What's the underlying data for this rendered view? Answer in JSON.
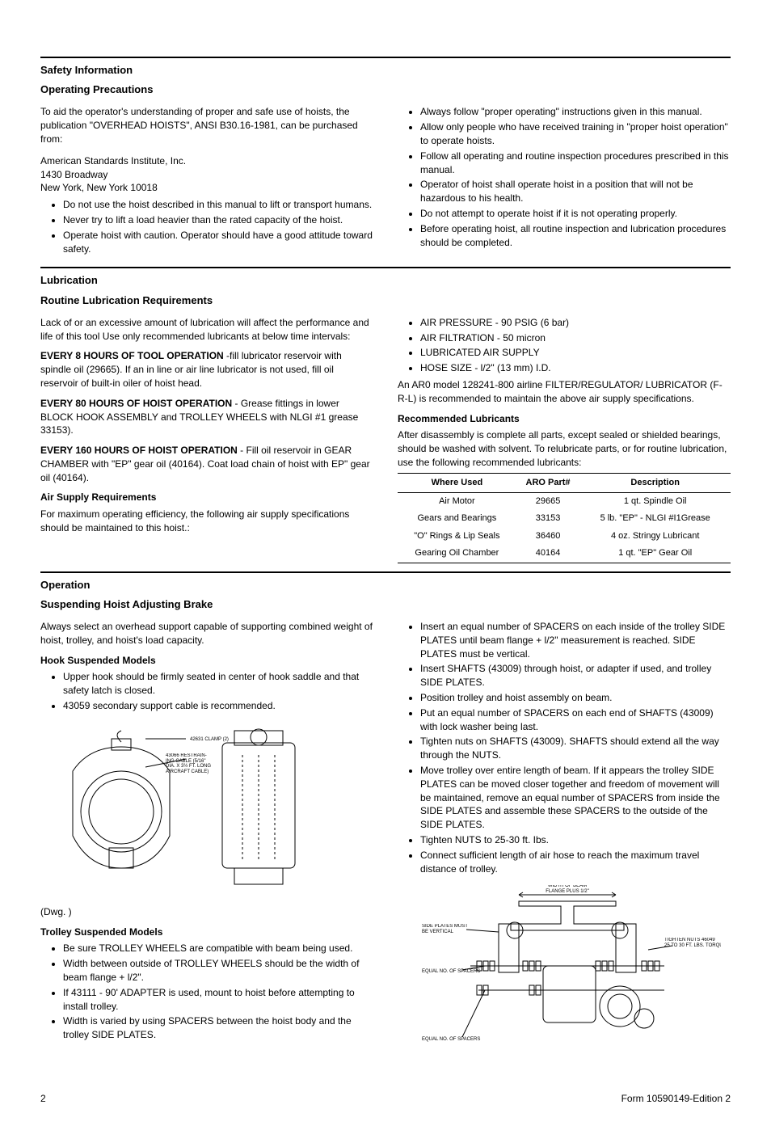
{
  "section_safety": {
    "title": "Safety Information",
    "subtitle": "Operating Precautions",
    "intro1": "To aid the operator's understanding of proper and safe use of hoists, the publication \"OVERHEAD HOISTS\", ANSI B30.16-1981, can be purchased from:",
    "addr1": "American Standards Institute, Inc.",
    "addr2": "1430 Broadway",
    "addr3": "New York, New York 10018",
    "left_bullets": [
      "Do not use the hoist described in this manual to lift or transport humans.",
      "Never try to lift a load heavier than the rated capacity of the hoist.",
      "Operate hoist with caution. Operator should have a good attitude toward safety."
    ],
    "right_bullets": [
      "Always follow \"proper operating\" instructions given in this manual.",
      "Allow only people who have received training in \"proper hoist operation\" to operate hoists.",
      "Follow all operating and routine inspection procedures prescribed in this manual.",
      "Operator of hoist shall operate hoist in a position that will not be hazardous to his health.",
      "Do not attempt to operate hoist if it is not operating properly.",
      "Before operating hoist, all routine inspection and lubrication procedures should be completed."
    ]
  },
  "section_lub": {
    "title": "Lubrication",
    "routine_title": "Routine Lubrication Requirements",
    "routine_intro": "Lack of or an excessive amount of lubrication will affect the performance and life of this tool Use only recommended lubricants at below time intervals:",
    "p1_bold": "EVERY 8 HOURS OF TOOL OPERATION",
    "p1": " -fill lubricator reservoir with spindle oil (29665). If an in line or air line lubricator is not used, fill oil reservoir of built-in oiler of hoist head.",
    "p2_bold": "EVERY 80 HOURS OF HOIST OPERATION",
    "p2": " - Grease fittings in lower BLOCK HOOK ASSEMBLY and TROLLEY WHEELS with NLGI #1 grease 33153).",
    "p3_bold": "EVERY 160 HOURS OF HOIST OPERATION",
    "p3": " - Fill oil reservoir in GEAR CHAMBER with \"EP\" gear oil (40164). Coat load chain of hoist with EP\" gear oil (40164).",
    "air_title": "Air Supply Requirements",
    "air_intro": "For maximum operating efficiency, the following air supply specifications should be maintained to this hoist.:",
    "air_bullets": [
      "AIR PRESSURE - 90 PSIG (6 bar)",
      "AIR FILTRATION - 50 micron",
      "LUBRICATED AIR SUPPLY",
      "HOSE SIZE - l/2\" (13 mm) I.D."
    ],
    "air_p1": "An AR0 model 128241-800 airline FILTER/REGULATOR/ LUBRICATOR (F-R-L) is recommended to maintain the above air supply specifications.",
    "reclub_title": "Recommended Lubricants",
    "reclub_intro": "After disassembly is complete all parts, except sealed or shielded bearings, should be washed with solvent. To relubricate parts, or for routine lubrication, use the following recommended lubricants:",
    "table": {
      "columns": [
        "Where Used",
        "ARO Part#",
        "Description"
      ],
      "rows": [
        [
          "Air Motor",
          "29665",
          "1 qt. Spindle Oil"
        ],
        [
          "Gears and Bearings",
          "33153",
          "5 lb. \"EP\" - NLGI #I1Grease"
        ],
        [
          "\"O\" Rings & Lip Seals",
          "36460",
          "4 oz. Stringy Lubricant"
        ],
        [
          "Gearing Oil Chamber",
          "40164",
          "1 qt. \"EP\" Gear Oil"
        ]
      ]
    }
  },
  "section_op": {
    "title": "Operation",
    "susp_title": "Suspending Hoist Adjusting Brake",
    "susp_intro": "Always select an overhead support capable of supporting combined weight of hoist, trolley, and hoist's load capacity.",
    "hook_title": "Hook Suspended Models",
    "hook_bullets": [
      "Upper hook should be firmly seated in center of hook saddle and that safety latch is closed.",
      "43059 secondary support cable is recommended."
    ],
    "dwg_label": "(Dwg.              )",
    "trolley_title": "Trolley Suspended Models",
    "trolley_bullets": [
      "Be sure TROLLEY WHEELS are compatible with beam being used.",
      "Width between outside of TROLLEY WHEELS should be the width of beam flange + l/2\".",
      "If 43111 - 90' ADAPTER is used, mount to hoist before attempting to install trolley.",
      "Width is varied by using SPACERS between the hoist body and the trolley SIDE PLATES."
    ],
    "right_bullets": [
      "Insert an equal number of SPACERS on each inside of the trolley SIDE PLATES until beam flange + l/2\" measurement is reached. SIDE PLATES must be vertical.",
      "Insert SHAFTS (43009) through hoist, or adapter if used, and trolley SIDE PLATES.",
      "Position trolley and hoist assembly on beam.",
      "Put an equal number of SPACERS on each end of SHAFTS (43009) with lock washer being last.",
      "Tighten nuts on SHAFTS (43009). SHAFTS should extend all the way through the NUTS.",
      "Move trolley over entire length of beam. If it appears the trolley SIDE PLATES can be moved closer together and freedom of movement will be maintained, remove an equal number of SPACERS from inside the SIDE PLATES and assemble these SPACERS to the outside of the SIDE PLATES.",
      "Tighten NUTS to 25-30 ft. Ibs.",
      "Connect sufficient length of air hose to reach the maximum travel distance of trolley."
    ],
    "diagram1": {
      "clamp_label": "42631 CLAMP (2)",
      "cable_label": "43066 RESTRAIN-\nING CABLE (5/16\"\nDIA. X 3½ FT. LONG\nAIRCRAFT CABLE)"
    },
    "diagram2": {
      "width_label": "WIDTH OF BEAM\nFLANGE PLUS 1/2\"",
      "side_label": "SIDE PLATES MUST\nBE VERTICAL",
      "torque_label": "TIGHTEN NUTS 46049\n25 TO 30 FT. LBS. TORQUE",
      "spacer_label": "EQUAL NO. OF SPACERS",
      "spacer_label2": "EQUAL NO. OF SPACERS"
    }
  },
  "footer": {
    "page": "2",
    "form": "Form 10590149-Edition 2"
  }
}
